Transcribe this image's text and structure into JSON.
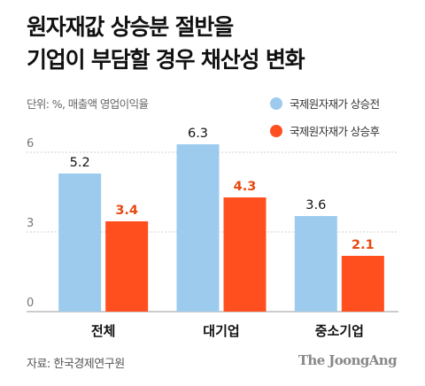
{
  "title_lines": [
    "원자재값 상승분 절반을",
    "기업이 부담할 경우 채산성 변화"
  ],
  "unit_note": "단위: %, 매출액 영업이익율",
  "source": "자료: 한국경제연구원",
  "brand": "The JoongAng",
  "colors": {
    "before": "#9ccbee",
    "after": "#ff4f1f",
    "after_label": "#e8490f",
    "text": "#111111"
  },
  "chart_data": {
    "type": "bar",
    "title": "원자재값 상승분 절반을 기업이 부담할 경우 채산성 변화",
    "categories": [
      "전체",
      "대기업",
      "중소기업"
    ],
    "series": [
      {
        "name": "국제원자재가 상승전",
        "values": [
          5.2,
          6.3,
          3.6
        ]
      },
      {
        "name": "국제원자재가 상승후",
        "values": [
          3.4,
          4.3,
          2.1
        ]
      }
    ],
    "value_labels": [
      [
        "5.2",
        "6.3",
        "3.6"
      ],
      [
        "3.4",
        "4.3",
        "2.1"
      ]
    ],
    "yticks": [
      0,
      3,
      6
    ],
    "ytick_labels": [
      "0",
      "3",
      "6"
    ],
    "ylim": [
      0,
      7
    ],
    "grid": true,
    "legend_position": "top-right",
    "xlabel": "",
    "ylabel": ""
  }
}
